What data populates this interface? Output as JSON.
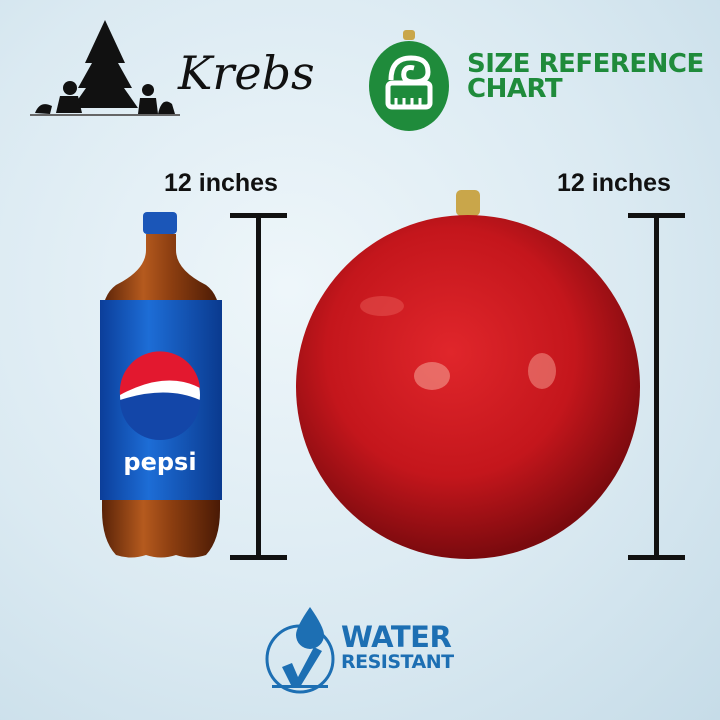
{
  "brand": {
    "name": "Krebs"
  },
  "badge": {
    "line1": "SIZE REFERENCE",
    "line2": "CHART",
    "color": "#1f8b3b"
  },
  "comparison": {
    "left_label": "12 inches",
    "right_label": "12 inches",
    "bottle_brand": "pepsi",
    "ornament_color": "#c4161c"
  },
  "feature": {
    "line1": "WATER",
    "line2": "RESISTANT",
    "color": "#1d6fb3"
  }
}
